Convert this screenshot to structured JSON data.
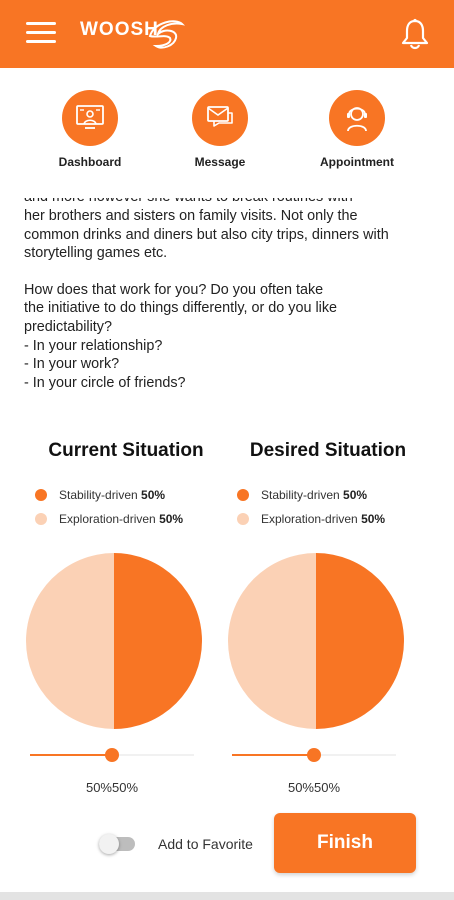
{
  "header": {
    "brand": "WOOSH",
    "menu_icon": "hamburger-menu-icon",
    "notification_icon": "bell-icon",
    "color": "#f87524"
  },
  "nav": [
    {
      "label": "Dashboard",
      "icon": "dashboard-icon"
    },
    {
      "label": "Message",
      "icon": "message-icon"
    },
    {
      "label": "Appointment",
      "icon": "appointment-icon"
    }
  ],
  "content": {
    "cutoff_line": "and more however she wants to break routines with",
    "paragraph1": [
      "her brothers and sisters on family visits. Not only the",
      "common drinks and diners but also city trips, dinners with",
      "storytelling games etc."
    ],
    "paragraph2": [
      "How does that work for you? Do you often take",
      "the initiative to do things differently, or do you  like",
      "predictability?",
      "- In your relationship?",
      "- In your work?",
      "- In your circle of friends?"
    ]
  },
  "panels": [
    {
      "title": "Current Situation",
      "legend": [
        {
          "label": "Stability-driven",
          "value": "50%"
        },
        {
          "label": "Exploration-driven",
          "value": "50%"
        }
      ],
      "slider_value": 0.5,
      "percent_text": "50%50%"
    },
    {
      "title": "Desired Situation",
      "legend": [
        {
          "label": "Stability-driven",
          "value": "50%"
        },
        {
          "label": "Exploration-driven",
          "value": "50%"
        }
      ],
      "slider_value": 0.5,
      "percent_text": "50%50%"
    }
  ],
  "chart_data": [
    {
      "type": "pie",
      "title": "Current Situation",
      "labels": [
        "Stability-driven",
        "Exploration-driven"
      ],
      "values": [
        50,
        50
      ],
      "colors": [
        "#f87524",
        "#fbd1b5"
      ]
    },
    {
      "type": "pie",
      "title": "Desired Situation",
      "labels": [
        "Stability-driven",
        "Exploration-driven"
      ],
      "values": [
        50,
        50
      ],
      "colors": [
        "#f87524",
        "#fbd1b5"
      ]
    }
  ],
  "footer": {
    "favorite_label": "Add to Favorite",
    "favorite_on": false,
    "finish_label": "Finish"
  }
}
